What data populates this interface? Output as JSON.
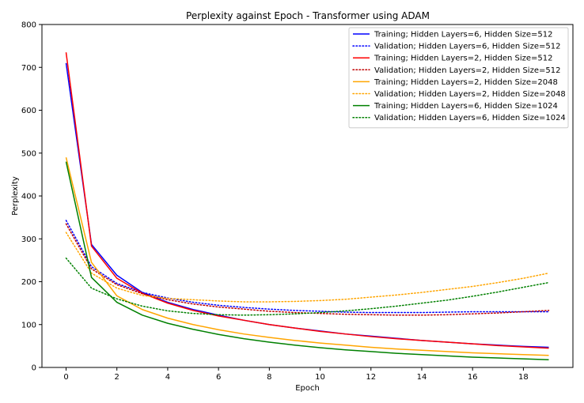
{
  "chart_data": {
    "type": "line",
    "title": "Perplexity against Epoch - Transformer using ADAM",
    "xlabel": "Epoch",
    "ylabel": "Perplexity",
    "xlim": [
      -0.95,
      19.95
    ],
    "ylim": [
      0,
      800
    ],
    "xticks": [
      0,
      2,
      4,
      6,
      8,
      10,
      12,
      14,
      16,
      18
    ],
    "yticks": [
      0,
      100,
      200,
      300,
      400,
      500,
      600,
      700,
      800
    ],
    "grid": false,
    "legend_position": "top-right",
    "x": [
      0,
      1,
      2,
      3,
      4,
      5,
      6,
      7,
      8,
      9,
      10,
      11,
      12,
      13,
      14,
      15,
      16,
      17,
      18,
      19
    ],
    "series": [
      {
        "name": "Training; Hidden Layers=6, Hidden Size=512",
        "color": "#0000ff",
        "style": "solid",
        "values": [
          710,
          287,
          215,
          175,
          152,
          135,
          122,
          110,
          100,
          92,
          85,
          78,
          73,
          68,
          63,
          59,
          55,
          52,
          49,
          47
        ]
      },
      {
        "name": "Validation; Hidden Layers=6, Hidden Size=512",
        "color": "#0000ff",
        "style": "dotted",
        "values": [
          343,
          235,
          196,
          175,
          162,
          152,
          145,
          140,
          136,
          133,
          131,
          129,
          128,
          128,
          128,
          129,
          130,
          130,
          130,
          130
        ]
      },
      {
        "name": "Training; Hidden Layers=2, Hidden Size=512",
        "color": "#ff0000",
        "style": "solid",
        "values": [
          735,
          283,
          208,
          173,
          150,
          133,
          120,
          110,
          100,
          92,
          84,
          78,
          72,
          67,
          63,
          59,
          55,
          51,
          48,
          45
        ]
      },
      {
        "name": "Validation; Hidden Layers=2, Hidden Size=512",
        "color": "#c00000",
        "style": "dotted",
        "values": [
          335,
          230,
          193,
          172,
          158,
          148,
          141,
          136,
          131,
          128,
          126,
          124,
          123,
          122,
          122,
          123,
          125,
          127,
          130,
          133
        ]
      },
      {
        "name": "Training; Hidden Layers=2, Hidden Size=2048",
        "color": "#ffa500",
        "style": "solid",
        "values": [
          490,
          245,
          167,
          135,
          115,
          100,
          88,
          78,
          70,
          63,
          57,
          52,
          47,
          43,
          40,
          37,
          34,
          32,
          30,
          28
        ]
      },
      {
        "name": "Validation; Hidden Layers=2, Hidden Size=2048",
        "color": "#ffa500",
        "style": "dotted",
        "values": [
          315,
          220,
          185,
          168,
          161,
          158,
          155,
          153,
          153,
          154,
          156,
          159,
          164,
          169,
          175,
          182,
          189,
          198,
          208,
          220
        ]
      },
      {
        "name": "Training; Hidden Layers=6, Hidden Size=1024",
        "color": "#008000",
        "style": "solid",
        "values": [
          480,
          210,
          152,
          122,
          103,
          89,
          77,
          67,
          59,
          52,
          46,
          41,
          37,
          33,
          30,
          27,
          24,
          22,
          20,
          18
        ]
      },
      {
        "name": "Validation; Hidden Layers=6, Hidden Size=1024",
        "color": "#008000",
        "style": "dotted",
        "values": [
          255,
          185,
          160,
          143,
          132,
          126,
          123,
          122,
          123,
          125,
          128,
          132,
          137,
          143,
          150,
          157,
          166,
          176,
          187,
          198
        ]
      }
    ]
  }
}
